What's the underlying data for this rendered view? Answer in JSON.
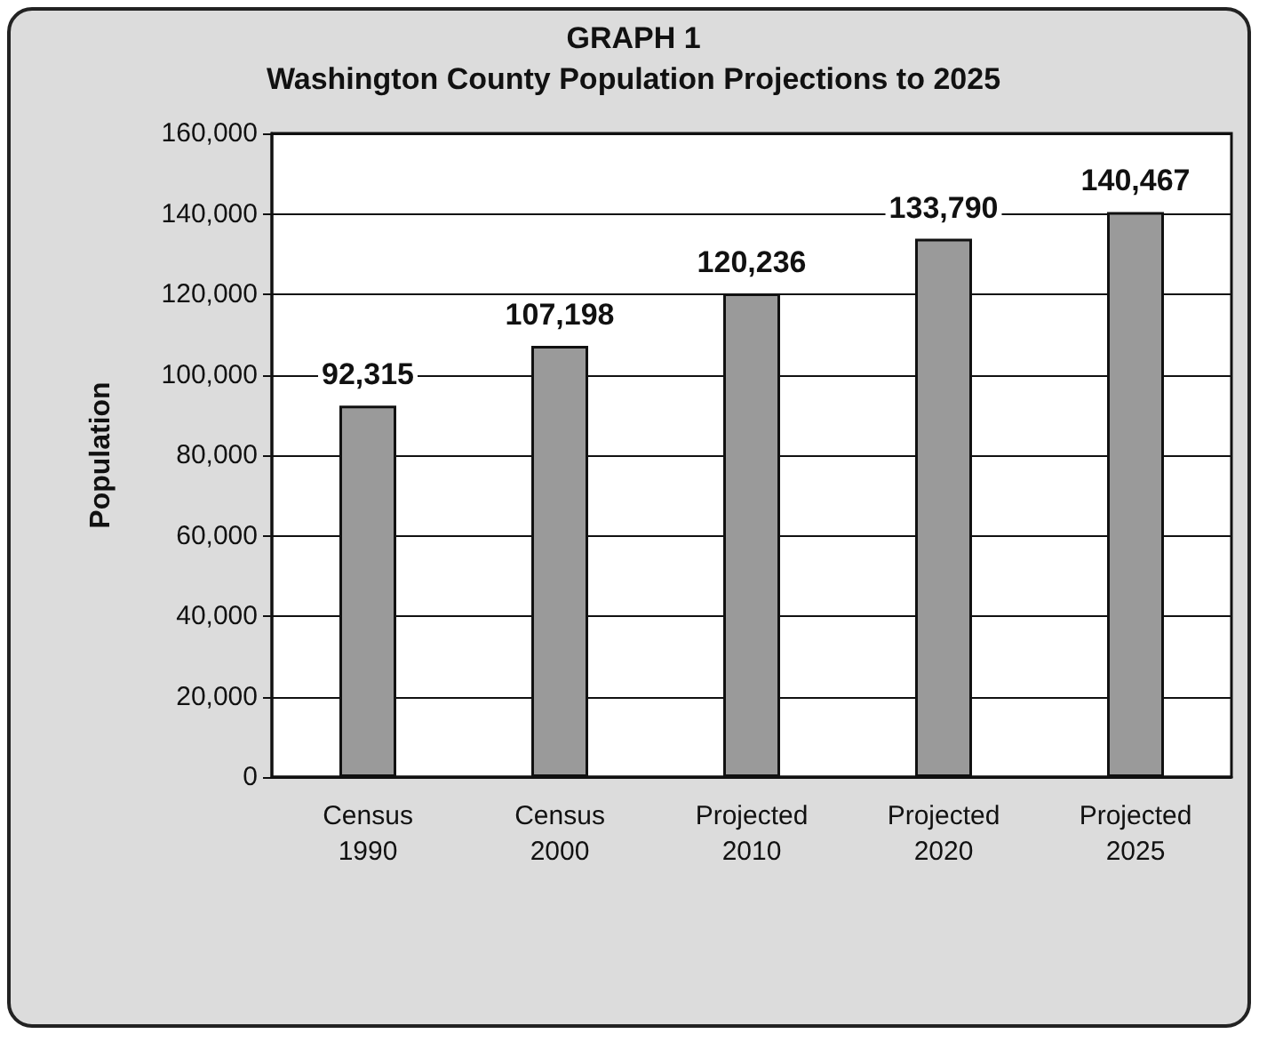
{
  "chart_data": {
    "type": "bar",
    "title": "GRAPH 1",
    "subtitle": "Washington County Population Projections to 2025",
    "ylabel": "Population",
    "categories": [
      "Census\n1990",
      "Census\n2000",
      "Projected\n2010",
      "Projected\n2020",
      "Projected\n2025"
    ],
    "values": [
      92315,
      107198,
      120236,
      133790,
      140467
    ],
    "value_labels": [
      "92,315",
      "107,198",
      "120,236",
      "133,790",
      "140,467"
    ],
    "color": "#9a9a9a",
    "ylim": [
      0,
      160000
    ],
    "yticks": [
      {
        "value": 0,
        "label": "0"
      },
      {
        "value": 20000,
        "label": "20,000"
      },
      {
        "value": 40000,
        "label": "40,000"
      },
      {
        "value": 60000,
        "label": "60,000"
      },
      {
        "value": 80000,
        "label": "80,000"
      },
      {
        "value": 100000,
        "label": "100,000"
      },
      {
        "value": 120000,
        "label": "120,000"
      },
      {
        "value": 140000,
        "label": "140,000"
      },
      {
        "value": 160000,
        "label": "160,000"
      }
    ],
    "grid": "y"
  }
}
